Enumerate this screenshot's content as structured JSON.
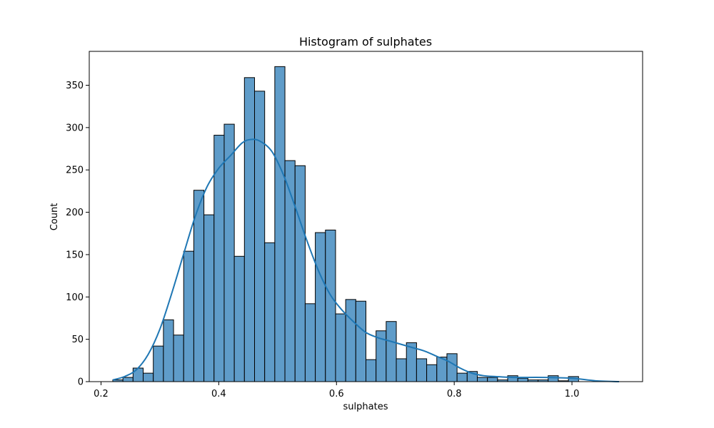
{
  "chart_data": {
    "type": "bar",
    "title": "Histogram of sulphates",
    "xlabel": "sulphates",
    "ylabel": "Count",
    "xlim": [
      0.18,
      1.12
    ],
    "ylim": [
      0,
      390
    ],
    "xticks": [
      0.2,
      0.4,
      0.6,
      0.8,
      1.0
    ],
    "xtick_labels": [
      "0.2",
      "0.4",
      "0.6",
      "0.8",
      "1.0"
    ],
    "yticks": [
      0,
      50,
      100,
      150,
      200,
      250,
      300,
      350
    ],
    "ytick_labels": [
      "0",
      "50",
      "100",
      "150",
      "200",
      "250",
      "300",
      "350"
    ],
    "grid": false,
    "bar_color": "#5f9cc9",
    "bar_edge_color": "#000000",
    "kde_color": "#1f77b4",
    "bins": {
      "start": 0.22,
      "width": 0.0172,
      "counts": [
        2,
        5,
        16,
        10,
        42,
        73,
        55,
        154,
        226,
        197,
        291,
        304,
        148,
        359,
        343,
        164,
        372,
        261,
        255,
        92,
        176,
        179,
        80,
        97,
        95,
        26,
        60,
        71,
        27,
        46,
        27,
        20,
        29,
        33,
        10,
        12,
        5,
        5,
        2,
        7,
        4,
        2,
        2,
        7,
        1,
        6,
        0,
        0,
        0,
        0
      ]
    },
    "kde": {
      "x": [
        0.22,
        0.24,
        0.26,
        0.28,
        0.3,
        0.32,
        0.34,
        0.36,
        0.38,
        0.4,
        0.42,
        0.44,
        0.455,
        0.47,
        0.49,
        0.51,
        0.53,
        0.55,
        0.57,
        0.59,
        0.61,
        0.63,
        0.65,
        0.67,
        0.69,
        0.71,
        0.73,
        0.75,
        0.77,
        0.79,
        0.81,
        0.83,
        0.85,
        0.87,
        0.9,
        0.95,
        1.0,
        1.04,
        1.08
      ],
      "y": [
        2,
        6,
        14,
        32,
        62,
        104,
        150,
        195,
        230,
        252,
        267,
        282,
        286,
        284,
        272,
        244,
        206,
        166,
        130,
        102,
        84,
        70,
        58,
        52,
        48,
        44,
        40,
        36,
        30,
        24,
        16,
        10,
        7,
        6,
        5,
        5,
        4,
        1,
        0
      ]
    }
  }
}
